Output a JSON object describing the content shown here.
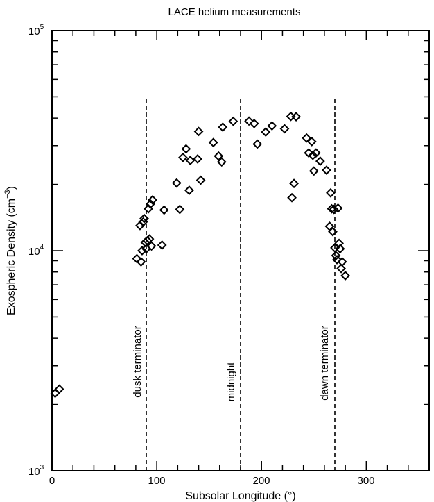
{
  "chart_data": {
    "type": "scatter",
    "title": "LACE helium measurements",
    "xlabel": "Subsolar Longitude (°)",
    "ylabel_main": "Exospheric Density (cm",
    "ylabel_sup": "−3",
    "ylabel_close": ")",
    "xlim": [
      0,
      360
    ],
    "ylim": [
      1000,
      100000
    ],
    "yscale": "log",
    "x_ticks": [
      0,
      100,
      200,
      300
    ],
    "x_tick_labels": [
      "0",
      "100",
      "200",
      "300"
    ],
    "y_tick_labels": [
      {
        "value": 1000,
        "base": "10",
        "exp": "3"
      },
      {
        "value": 10000,
        "base": "10",
        "exp": "4"
      },
      {
        "value": 100000,
        "base": "10",
        "exp": "5"
      }
    ],
    "marker": "diamond-open",
    "grid": false,
    "vlines": [
      {
        "x": 90,
        "label": "dusk terminator",
        "y_top": 49000
      },
      {
        "x": 180,
        "label": "midnight",
        "y_top": 49000
      },
      {
        "x": 270,
        "label": "dawn terminator",
        "y_top": 49000
      }
    ],
    "points": [
      [
        3,
        2250
      ],
      [
        7,
        2350
      ],
      [
        81,
        9200
      ],
      [
        84,
        13000
      ],
      [
        85,
        8900
      ],
      [
        86,
        10000
      ],
      [
        87,
        13500
      ],
      [
        88,
        14000
      ],
      [
        89,
        10900
      ],
      [
        90,
        10200
      ],
      [
        91,
        11100
      ],
      [
        92,
        15500
      ],
      [
        93,
        11300
      ],
      [
        94,
        16300
      ],
      [
        95,
        10500
      ],
      [
        96,
        17000
      ],
      [
        105,
        10600
      ],
      [
        107,
        15300
      ],
      [
        119,
        20300
      ],
      [
        122,
        15400
      ],
      [
        125,
        26500
      ],
      [
        128,
        29000
      ],
      [
        131,
        18800
      ],
      [
        132,
        25700
      ],
      [
        139,
        26100
      ],
      [
        140,
        34800
      ],
      [
        142,
        20900
      ],
      [
        154,
        31000
      ],
      [
        159,
        26900
      ],
      [
        162,
        25300
      ],
      [
        163,
        36400
      ],
      [
        173,
        38700
      ],
      [
        188,
        38800
      ],
      [
        193,
        37800
      ],
      [
        196,
        30500
      ],
      [
        204,
        34600
      ],
      [
        210,
        36900
      ],
      [
        222,
        35800
      ],
      [
        228,
        40700
      ],
      [
        229,
        17400
      ],
      [
        231,
        20200
      ],
      [
        233,
        40600
      ],
      [
        243,
        32500
      ],
      [
        245,
        27800
      ],
      [
        248,
        31300
      ],
      [
        249,
        27100
      ],
      [
        250,
        23000
      ],
      [
        252,
        27800
      ],
      [
        256,
        25500
      ],
      [
        262,
        23200
      ],
      [
        265,
        12900
      ],
      [
        266,
        18300
      ],
      [
        267,
        15500
      ],
      [
        268,
        12200
      ],
      [
        269,
        15400
      ],
      [
        270,
        10300
      ],
      [
        271,
        9500
      ],
      [
        272,
        9100
      ],
      [
        273,
        15600
      ],
      [
        274,
        10800
      ],
      [
        275,
        10200
      ],
      [
        276,
        8300
      ],
      [
        277,
        8900
      ],
      [
        280,
        7700
      ]
    ]
  }
}
